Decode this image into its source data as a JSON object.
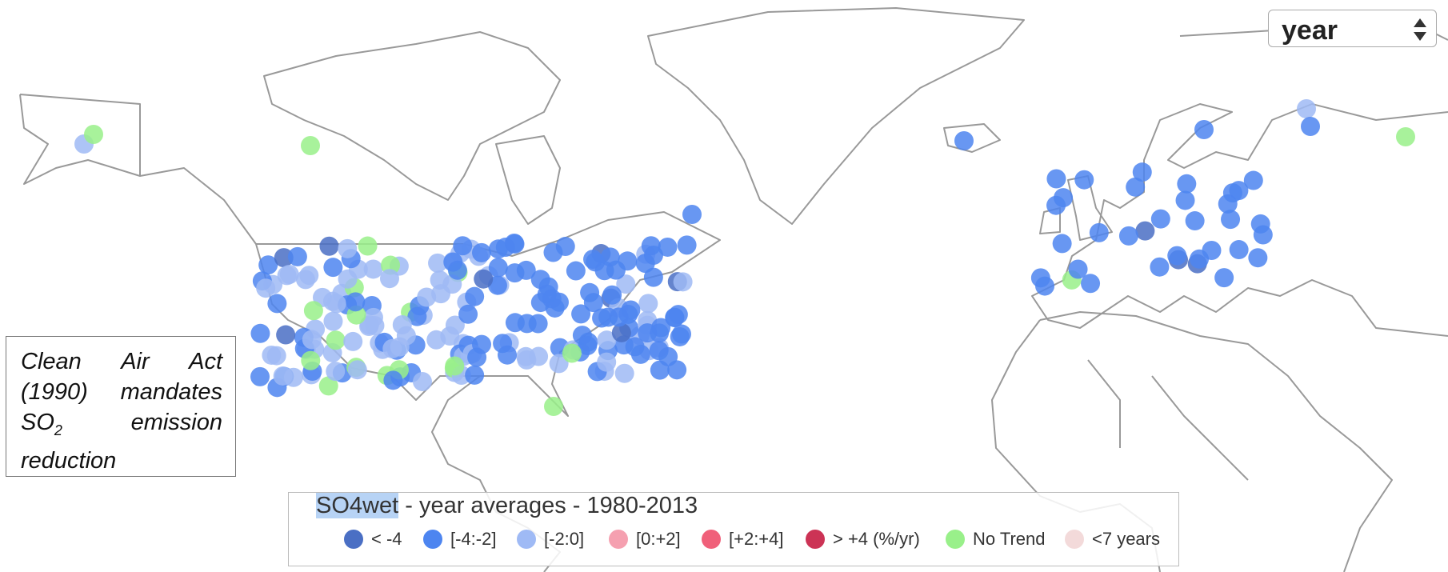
{
  "select": {
    "value": "year"
  },
  "annotation": {
    "text_before": "Clean Air Act (1990) mandates SO",
    "subscript": "2",
    "text_after": "emission reduction"
  },
  "legend": {
    "title_highlight": "SO4wet",
    "title_rest": " - year averages - 1980-2013",
    "items": [
      {
        "label": "< -4",
        "color": "#4a6fc4"
      },
      {
        "label": "[-4:-2]",
        "color": "#4d85f0"
      },
      {
        "label": "[-2:0]",
        "color": "#9fbaf5"
      },
      {
        "label": "[0:+2]",
        "color": "#f5a0b0"
      },
      {
        "label": "[+2:+4]",
        "color": "#f0607a"
      },
      {
        "label": "> +4 (%/yr)",
        "color": "#cc3355"
      },
      {
        "label": "No Trend",
        "color": "#99f08a"
      },
      {
        "label": "<7 years",
        "color": "#f3dada"
      }
    ]
  }
}
